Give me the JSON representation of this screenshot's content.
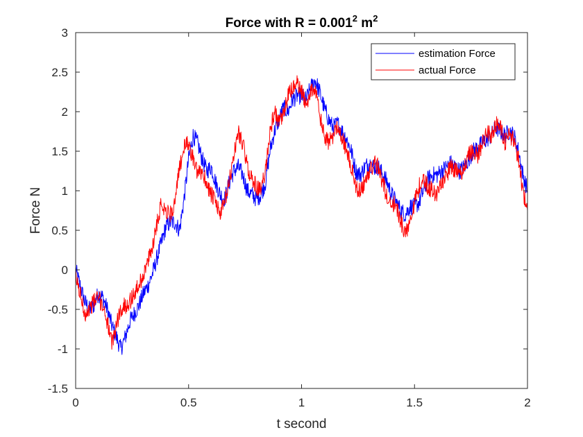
{
  "chart_data": {
    "type": "line",
    "title": {
      "prefix": "Force with R = 0.001",
      "sup1": "2",
      "mid": " m",
      "sup2": "2"
    },
    "xlabel": "t second",
    "ylabel": "Force N",
    "xlim": [
      0,
      2
    ],
    "ylim": [
      -1.5,
      3
    ],
    "xticks": [
      0,
      0.5,
      1,
      1.5,
      2
    ],
    "xtick_labels": [
      "0",
      "0.5",
      "1",
      "1.5",
      "2"
    ],
    "yticks": [
      -1.5,
      -1,
      -0.5,
      0,
      0.5,
      1,
      1.5,
      2,
      2.5,
      3
    ],
    "ytick_labels": [
      "-1.5",
      "-1",
      "-0.5",
      "0",
      "0.5",
      "1",
      "1.5",
      "2",
      "2.5",
      "3"
    ],
    "grid": false,
    "legend_location": "top-right",
    "series": [
      {
        "name": "estimation Force",
        "color": "#0000ff",
        "x": [
          0.0,
          0.02,
          0.04,
          0.06,
          0.08,
          0.1,
          0.12,
          0.14,
          0.16,
          0.18,
          0.2,
          0.22,
          0.24,
          0.26,
          0.28,
          0.3,
          0.32,
          0.34,
          0.36,
          0.38,
          0.4,
          0.42,
          0.44,
          0.46,
          0.48,
          0.5,
          0.52,
          0.54,
          0.56,
          0.58,
          0.6,
          0.62,
          0.64,
          0.66,
          0.68,
          0.7,
          0.72,
          0.74,
          0.76,
          0.78,
          0.8,
          0.82,
          0.84,
          0.86,
          0.88,
          0.9,
          0.92,
          0.94,
          0.96,
          0.98,
          1.0,
          1.02,
          1.04,
          1.06,
          1.08,
          1.1,
          1.12,
          1.14,
          1.16,
          1.18,
          1.2,
          1.22,
          1.24,
          1.26,
          1.28,
          1.3,
          1.32,
          1.34,
          1.36,
          1.38,
          1.4,
          1.42,
          1.44,
          1.46,
          1.48,
          1.5,
          1.52,
          1.54,
          1.56,
          1.58,
          1.6,
          1.62,
          1.64,
          1.66,
          1.68,
          1.7,
          1.72,
          1.74,
          1.76,
          1.78,
          1.8,
          1.82,
          1.84,
          1.86,
          1.88,
          1.9,
          1.92,
          1.94,
          1.96,
          1.98,
          2.0
        ],
        "y": [
          0.0,
          -0.2,
          -0.4,
          -0.5,
          -0.45,
          -0.3,
          -0.35,
          -0.5,
          -0.7,
          -0.85,
          -1.0,
          -0.85,
          -0.65,
          -0.55,
          -0.45,
          -0.3,
          -0.2,
          -0.05,
          0.15,
          0.35,
          0.55,
          0.6,
          0.6,
          0.5,
          0.9,
          1.4,
          1.7,
          1.6,
          1.4,
          1.25,
          1.3,
          1.1,
          0.95,
          0.9,
          1.1,
          1.25,
          1.3,
          1.2,
          1.0,
          0.95,
          0.9,
          0.95,
          1.1,
          1.5,
          1.75,
          1.9,
          2.05,
          2.0,
          2.15,
          2.2,
          2.2,
          2.15,
          2.3,
          2.4,
          2.25,
          2.05,
          1.9,
          1.8,
          1.85,
          1.75,
          1.65,
          1.5,
          1.25,
          1.2,
          1.3,
          1.35,
          1.3,
          1.3,
          1.2,
          1.1,
          0.95,
          0.85,
          0.75,
          0.7,
          0.8,
          0.8,
          0.85,
          1.0,
          1.15,
          1.2,
          1.2,
          1.25,
          1.3,
          1.35,
          1.3,
          1.25,
          1.3,
          1.4,
          1.5,
          1.55,
          1.6,
          1.65,
          1.7,
          1.8,
          1.75,
          1.7,
          1.75,
          1.7,
          1.5,
          1.2,
          1.0
        ]
      },
      {
        "name": "actual Force",
        "color": "#ff0000",
        "x": [
          0.0,
          0.02,
          0.04,
          0.06,
          0.08,
          0.1,
          0.12,
          0.14,
          0.16,
          0.18,
          0.2,
          0.22,
          0.24,
          0.26,
          0.28,
          0.3,
          0.32,
          0.34,
          0.36,
          0.38,
          0.4,
          0.42,
          0.44,
          0.46,
          0.48,
          0.5,
          0.52,
          0.54,
          0.56,
          0.58,
          0.6,
          0.62,
          0.64,
          0.66,
          0.68,
          0.7,
          0.72,
          0.74,
          0.76,
          0.78,
          0.8,
          0.82,
          0.84,
          0.86,
          0.88,
          0.9,
          0.92,
          0.94,
          0.96,
          0.98,
          1.0,
          1.02,
          1.04,
          1.06,
          1.08,
          1.1,
          1.12,
          1.14,
          1.16,
          1.18,
          1.2,
          1.22,
          1.24,
          1.26,
          1.28,
          1.3,
          1.32,
          1.34,
          1.36,
          1.38,
          1.4,
          1.42,
          1.44,
          1.46,
          1.48,
          1.5,
          1.52,
          1.54,
          1.56,
          1.58,
          1.6,
          1.62,
          1.64,
          1.66,
          1.68,
          1.7,
          1.72,
          1.74,
          1.76,
          1.78,
          1.8,
          1.82,
          1.84,
          1.86,
          1.88,
          1.9,
          1.92,
          1.94,
          1.96,
          1.98,
          2.0
        ],
        "y": [
          -0.1,
          -0.3,
          -0.55,
          -0.5,
          -0.4,
          -0.35,
          -0.45,
          -0.65,
          -0.95,
          -0.7,
          -0.5,
          -0.45,
          -0.4,
          -0.3,
          -0.2,
          -0.05,
          0.1,
          0.3,
          0.6,
          0.85,
          0.75,
          0.7,
          0.85,
          1.3,
          1.55,
          1.6,
          1.4,
          1.2,
          1.25,
          1.1,
          0.95,
          0.85,
          0.7,
          0.85,
          1.1,
          1.45,
          1.75,
          1.6,
          1.3,
          1.15,
          1.05,
          1.0,
          1.25,
          1.75,
          2.0,
          1.85,
          1.95,
          2.2,
          2.3,
          2.35,
          2.25,
          2.1,
          2.25,
          2.3,
          1.95,
          1.7,
          1.6,
          1.7,
          1.85,
          1.65,
          1.5,
          1.3,
          1.05,
          1.0,
          1.1,
          1.25,
          1.35,
          1.3,
          1.1,
          0.9,
          0.85,
          0.8,
          0.6,
          0.45,
          0.65,
          0.85,
          1.05,
          1.15,
          1.05,
          1.0,
          0.95,
          1.1,
          1.2,
          1.3,
          1.25,
          1.2,
          1.3,
          1.45,
          1.5,
          1.45,
          1.6,
          1.75,
          1.7,
          1.85,
          1.8,
          1.6,
          1.7,
          1.65,
          1.4,
          1.0,
          0.75
        ]
      }
    ]
  }
}
